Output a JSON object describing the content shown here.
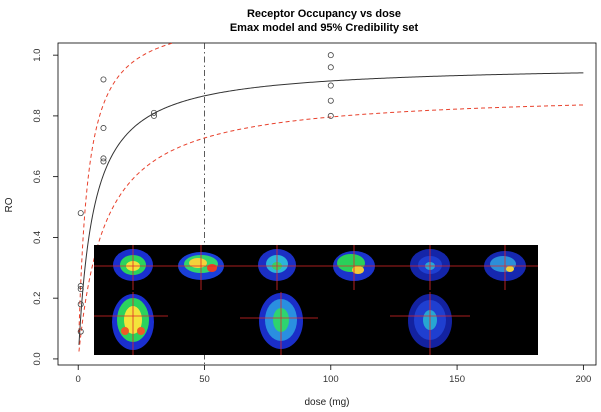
{
  "chart_data": {
    "type": "scatter",
    "title": "Receptor Occupancy vs dose",
    "subtitle": "Emax model and 95% Credibility set",
    "xlabel": "dose (mg)",
    "ylabel": "RO",
    "xlim": [
      -8,
      205
    ],
    "ylim": [
      -0.02,
      1.04
    ],
    "xticks": [
      0,
      50,
      100,
      150,
      200
    ],
    "yticks": [
      0.0,
      0.2,
      0.4,
      0.6,
      0.8,
      1.0
    ],
    "xtick_labels": [
      "0",
      "50",
      "100",
      "150",
      "200"
    ],
    "ytick_labels": [
      "0.0",
      "0.2",
      "0.4",
      "0.6",
      "0.8",
      "1.0"
    ],
    "points": [
      {
        "x": 1,
        "y": 0.09
      },
      {
        "x": 1,
        "y": 0.18
      },
      {
        "x": 1,
        "y": 0.23
      },
      {
        "x": 1,
        "y": 0.24
      },
      {
        "x": 1,
        "y": 0.48
      },
      {
        "x": 10,
        "y": 0.65
      },
      {
        "x": 10,
        "y": 0.66
      },
      {
        "x": 10,
        "y": 0.76
      },
      {
        "x": 10,
        "y": 0.92
      },
      {
        "x": 30,
        "y": 0.8
      },
      {
        "x": 30,
        "y": 0.81
      },
      {
        "x": 100,
        "y": 0.8
      },
      {
        "x": 100,
        "y": 0.85
      },
      {
        "x": 100,
        "y": 0.9
      },
      {
        "x": 100,
        "y": 0.96
      },
      {
        "x": 100,
        "y": 1.0
      }
    ],
    "emax_fit": {
      "emax": 0.97,
      "ed50": 6.0,
      "color": "#333333"
    },
    "upper_band": {
      "emax": 1.14,
      "ed50": 3.6,
      "color": "#e8412c"
    },
    "lower_band": {
      "emax": 0.88,
      "ed50": 10.5,
      "color": "#e8412c"
    },
    "reference_line": {
      "x": 50,
      "style": "dash-dot"
    },
    "grid": false,
    "legend": "none"
  },
  "inset": {
    "description_icon": "pet-brain-scan-montage",
    "background": "#000000"
  }
}
